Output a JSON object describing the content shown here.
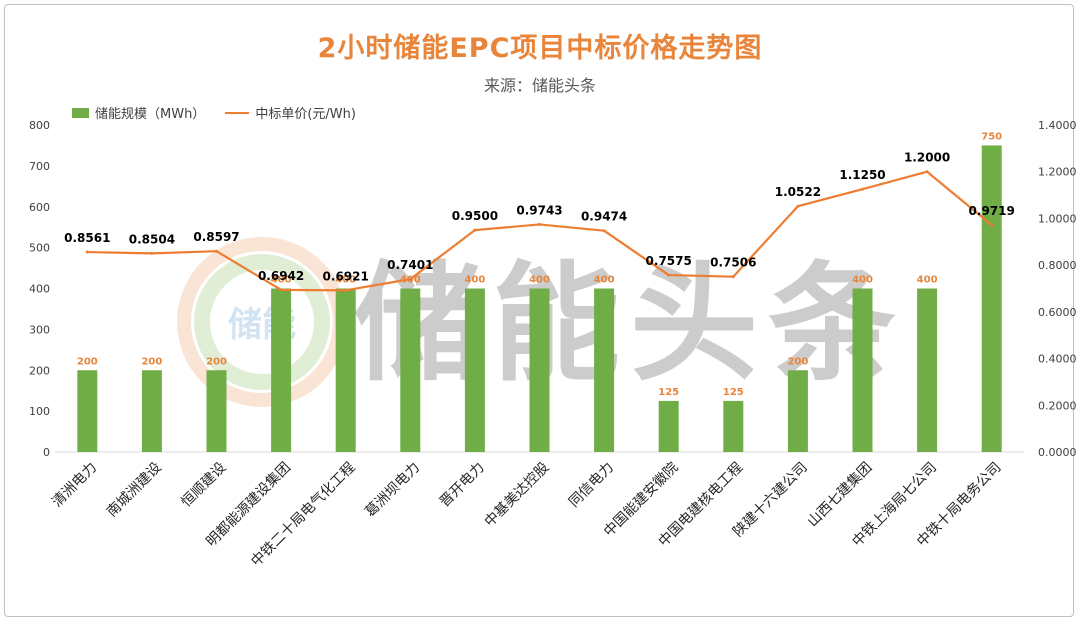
{
  "chart_data": {
    "type": "bar+line",
    "title": "2小时储能EPC项目中标价格走势图",
    "subtitle": "来源：储能头条",
    "categories": [
      "清洲电力",
      "南城洲建设",
      "恒顺建设",
      "明都能源建设集团",
      "中铁二十局电气化工程",
      "葛洲坝电力",
      "晋开电力",
      "中基美达控股",
      "同信电力",
      "中国能建安徽院",
      "中国电建核电工程",
      "陕建十六建公司",
      "山西七建集团",
      "中铁上海局七公司",
      "中铁十局电务公司"
    ],
    "series": [
      {
        "name": "储能规模（MWh）",
        "type": "bar",
        "axis": "left",
        "values": [
          200,
          200,
          200,
          400,
          400,
          400,
          400,
          400,
          400,
          125,
          125,
          200,
          400,
          400,
          750
        ],
        "labels": [
          "200",
          "200",
          "200",
          "400",
          "400",
          "400",
          "400",
          "400",
          "400",
          "125",
          "125",
          "200",
          "400",
          "400",
          "750"
        ],
        "color": "#70ad47",
        "label_color": "#e8853a"
      },
      {
        "name": "中标单价(元/Wh)",
        "type": "line",
        "axis": "right",
        "values": [
          0.8561,
          0.8504,
          0.8597,
          0.6942,
          0.6921,
          0.7401,
          0.95,
          0.9743,
          0.9474,
          0.7575,
          0.7506,
          1.0522,
          1.125,
          1.2,
          0.9719
        ],
        "labels": [
          "0.8561",
          "0.8504",
          "0.8597",
          "0.6942",
          "0.6921",
          "0.7401",
          "0.9500",
          "0.9743",
          "0.9474",
          "0.7575",
          "0.7506",
          "1.0522",
          "1.1250",
          "1.2000",
          "0.9719"
        ],
        "color": "#ed7d31"
      }
    ],
    "y_left": {
      "min": 0,
      "max": 800,
      "ticks": [
        "0",
        "100",
        "200",
        "300",
        "400",
        "500",
        "600",
        "700",
        "800"
      ]
    },
    "y_right": {
      "min": 0,
      "max": 1.4,
      "ticks": [
        "0.0000",
        "0.2000",
        "0.4000",
        "0.6000",
        "0.8000",
        "1.0000",
        "1.2000",
        "1.4000"
      ]
    },
    "legend_position": "top-left",
    "grid": false
  },
  "watermark": {
    "text": "储能头条",
    "logo_text": "储能"
  },
  "colors": {
    "title": "#e8853a",
    "bar": "#70ad47",
    "line": "#ed7d31",
    "axis_text": "#404040"
  }
}
